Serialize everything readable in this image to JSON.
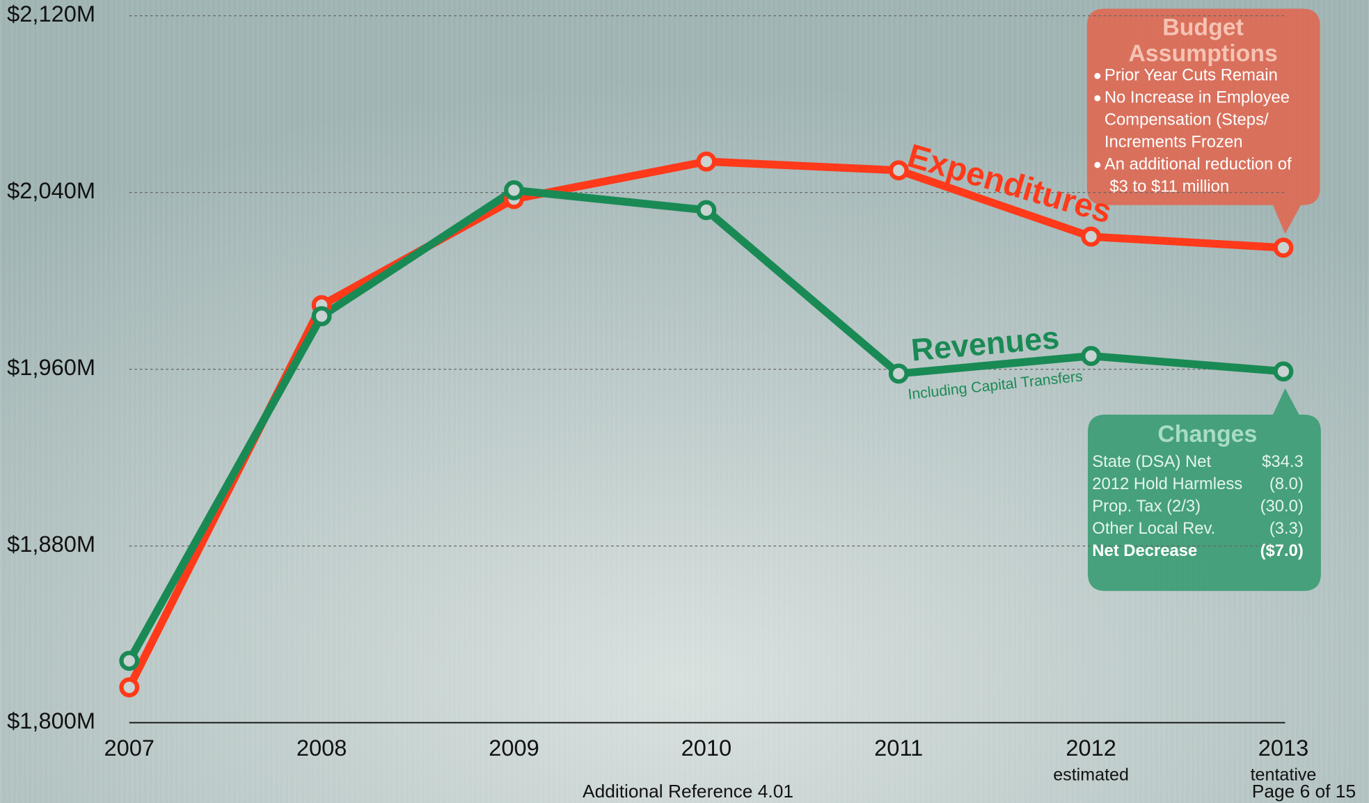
{
  "chart_data": {
    "type": "line",
    "categories": [
      "2007",
      "2008",
      "2009",
      "2010",
      "2011",
      "2012",
      "2013"
    ],
    "category_notes": [
      null,
      null,
      null,
      null,
      null,
      "estimated",
      "tentative"
    ],
    "series": [
      {
        "name": "Expenditures",
        "color": "#ff3a1a",
        "values": [
          1816,
          1989,
          2037,
          2054,
          2050,
          2020,
          2015
        ]
      },
      {
        "name": "Revenues",
        "color": "#1a8a55",
        "values": [
          1828,
          1984,
          2041,
          2032,
          1958,
          1966,
          1959
        ]
      }
    ],
    "series_note": "Including Capital Transfers",
    "ylim": [
      1800,
      2120
    ],
    "yticks": [
      {
        "value": 1800,
        "label": "$1,800M"
      },
      {
        "value": 1880,
        "label": "$1,880M"
      },
      {
        "value": 1960,
        "label": "$1,960M"
      },
      {
        "value": 2040,
        "label": "$2,040M"
      },
      {
        "value": 2120,
        "label": "$2,120M"
      }
    ],
    "grid": true
  },
  "budget_box": {
    "title": [
      "Budget",
      "Assumptions"
    ],
    "items": [
      [
        "Prior Year Cuts Remain"
      ],
      [
        "No Increase in Employee",
        "Compensation (Steps/",
        "Increments Frozen"
      ],
      [
        "An additional reduction of",
        "$3 to $11 million"
      ]
    ]
  },
  "changes_box": {
    "title": "Changes",
    "rows": [
      [
        "State (DSA) Net",
        "$34.3"
      ],
      [
        "2012 Hold Harmless",
        "(8.0)"
      ],
      [
        "Prop. Tax (2/3)",
        "(30.0)"
      ],
      [
        "Other Local Rev.",
        "(3.3)"
      ],
      [
        "Net Decrease",
        "($7.0)"
      ]
    ]
  },
  "footer": {
    "reference": "Additional Reference 4.01",
    "page": "Page 6 of 15"
  }
}
